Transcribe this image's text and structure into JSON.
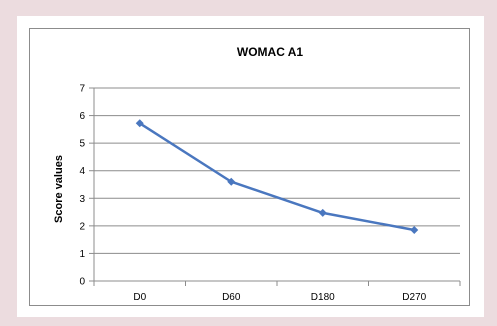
{
  "colors": {
    "page_background": "#ecdcdf",
    "series_line": "#4a77bf",
    "gridline": "#8c8c8c"
  },
  "chart_data": {
    "type": "line",
    "title": "WOMAC A1",
    "xlabel": "",
    "ylabel": "Score values",
    "categories": [
      "D0",
      "D60",
      "D180",
      "D270"
    ],
    "series": [
      {
        "values": [
          5.72,
          3.6,
          2.47,
          1.85
        ],
        "marker": "diamond"
      }
    ],
    "ylim": [
      0,
      7
    ],
    "yticks": [
      0,
      1,
      2,
      3,
      4,
      5,
      6,
      7
    ],
    "grid": true,
    "legend": "none"
  }
}
